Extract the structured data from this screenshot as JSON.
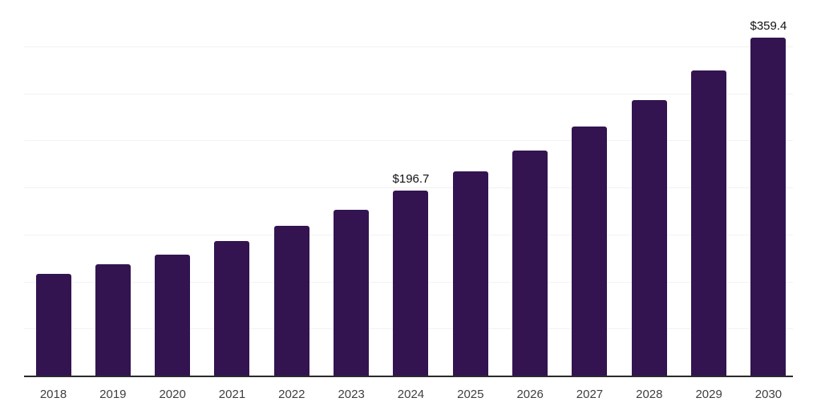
{
  "chart_data": {
    "type": "bar",
    "title": "",
    "xlabel": "",
    "ylabel": "",
    "categories": [
      "2018",
      "2019",
      "2020",
      "2021",
      "2022",
      "2023",
      "2024",
      "2025",
      "2026",
      "2027",
      "2028",
      "2029",
      "2030"
    ],
    "values": [
      107.8,
      118.3,
      128.9,
      142.7,
      158.9,
      176.6,
      196.7,
      217.0,
      238.9,
      264.4,
      292.5,
      324.3,
      359.4
    ],
    "bar_labels": [
      "",
      "",
      "",
      "",
      "",
      "",
      "$196.7",
      "",
      "",
      "",
      "",
      "",
      "$359.4"
    ],
    "ylim": [
      0,
      400
    ],
    "grid_step": 50,
    "grid": "horizontal-only",
    "y_tick_labels_visible": false,
    "legend": "none",
    "colors": {
      "bar": "#331450",
      "grid": "#f2f2f2",
      "axis": "#2b2b2b",
      "tick_label": "#3f3f3f",
      "value_label": "#111111",
      "background": "#ffffff"
    }
  }
}
